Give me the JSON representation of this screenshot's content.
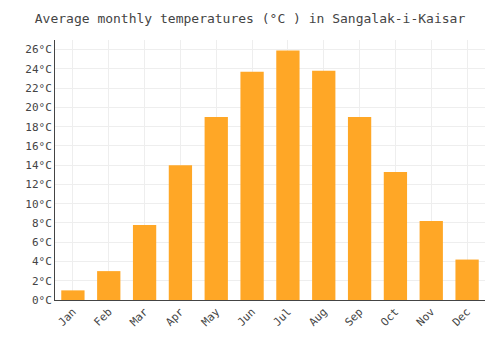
{
  "chart_data": {
    "type": "bar",
    "title": "Average monthly temperatures (°C ) in Sangalak-i-Kaisar",
    "categories": [
      "Jan",
      "Feb",
      "Mar",
      "Apr",
      "May",
      "Jun",
      "Jul",
      "Aug",
      "Sep",
      "Oct",
      "Nov",
      "Dec"
    ],
    "values": [
      1.0,
      3.0,
      7.8,
      14.0,
      19.0,
      23.7,
      25.9,
      23.8,
      19.0,
      13.3,
      8.2,
      4.2
    ],
    "color": "#FFA726",
    "ylim": [
      0,
      27
    ],
    "yticks": [
      {
        "value": 0,
        "label": "0°C"
      },
      {
        "value": 2,
        "label": "2°C"
      },
      {
        "value": 4,
        "label": "4°C"
      },
      {
        "value": 6,
        "label": "6°C"
      },
      {
        "value": 8,
        "label": "8°C"
      },
      {
        "value": 10,
        "label": "10°C"
      },
      {
        "value": 12,
        "label": "12°C"
      },
      {
        "value": 14,
        "label": "14°C"
      },
      {
        "value": 16,
        "label": "16°C"
      },
      {
        "value": 18,
        "label": "18°C"
      },
      {
        "value": 20,
        "label": "20°C"
      },
      {
        "value": 22,
        "label": "22°C"
      },
      {
        "value": 24,
        "label": "24°C"
      },
      {
        "value": 26,
        "label": "26°C"
      }
    ],
    "grid": true
  }
}
